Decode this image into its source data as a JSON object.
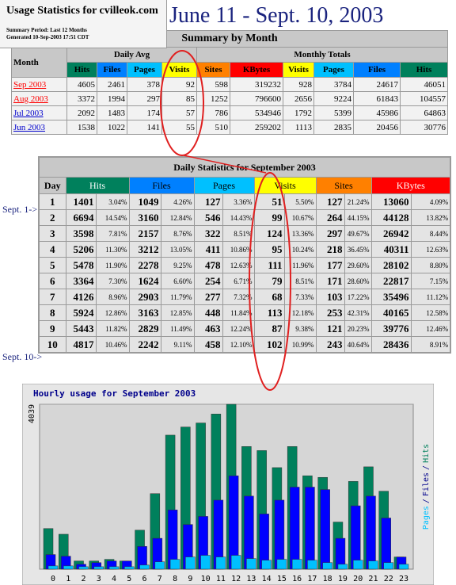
{
  "header": {
    "title": "Usage Statistics for cvilleok.com",
    "summary_period": "Summary Period: Last 12 Months",
    "generated": "Generated 10-Sep-2003 17:51 CDT"
  },
  "annotations": {
    "date_range": "June 11 - Sept. 10, 2003",
    "start_marker": "Sept. 1->",
    "end_marker": "Sept. 10->"
  },
  "summary_table": {
    "title": "Summary by Month",
    "month_header": "Month",
    "groups": [
      "Daily Avg",
      "Monthly Totals"
    ],
    "columns": [
      {
        "label": "Hits",
        "color": "#00805c"
      },
      {
        "label": "Files",
        "color": "#0080ff"
      },
      {
        "label": "Pages",
        "color": "#00c0ff"
      },
      {
        "label": "Visits",
        "color": "#ffff00"
      },
      {
        "label": "Sites",
        "color": "#ff8000"
      },
      {
        "label": "KBytes",
        "color": "#ff0000"
      },
      {
        "label": "Visits",
        "color": "#ffff00"
      },
      {
        "label": "Pages",
        "color": "#00c0ff"
      },
      {
        "label": "Files",
        "color": "#0080ff"
      },
      {
        "label": "Hits",
        "color": "#00805c"
      }
    ],
    "rows": [
      {
        "month": "Sep 2003",
        "link_color": "#ff0000",
        "cells": [
          "4605",
          "2461",
          "378",
          "92",
          "598",
          "319232",
          "928",
          "3784",
          "24617",
          "46051"
        ]
      },
      {
        "month": "Aug 2003",
        "link_color": "#ff0000",
        "cells": [
          "3372",
          "1994",
          "297",
          "85",
          "1252",
          "796600",
          "2656",
          "9224",
          "61843",
          "104557"
        ]
      },
      {
        "month": "Jul 2003",
        "link_color": "#0000cc",
        "cells": [
          "2092",
          "1483",
          "174",
          "57",
          "786",
          "534946",
          "1792",
          "5399",
          "45986",
          "64863"
        ]
      },
      {
        "month": "Jun 2003",
        "link_color": "#0000cc",
        "cells": [
          "1538",
          "1022",
          "141",
          "55",
          "510",
          "259202",
          "1113",
          "2835",
          "20456",
          "30776"
        ]
      }
    ]
  },
  "daily_table": {
    "title": "Daily Statistics for September 2003",
    "day_header": "Day",
    "columns": [
      {
        "label": "Hits",
        "color": "#00805c"
      },
      {
        "label": "Files",
        "color": "#0080ff"
      },
      {
        "label": "Pages",
        "color": "#00c0ff"
      },
      {
        "label": "Visits",
        "color": "#ffff00"
      },
      {
        "label": "Sites",
        "color": "#ff8000"
      },
      {
        "label": "KBytes",
        "color": "#ff0000"
      }
    ],
    "rows": [
      {
        "day": "1",
        "cells": [
          "1401",
          "3.04%",
          "1049",
          "4.26%",
          "127",
          "3.36%",
          "51",
          "5.50%",
          "127",
          "21.24%",
          "13060",
          "4.09%"
        ]
      },
      {
        "day": "2",
        "cells": [
          "6694",
          "14.54%",
          "3160",
          "12.84%",
          "546",
          "14.43%",
          "99",
          "10.67%",
          "264",
          "44.15%",
          "44128",
          "13.82%"
        ]
      },
      {
        "day": "3",
        "cells": [
          "3598",
          "7.81%",
          "2157",
          "8.76%",
          "322",
          "8.51%",
          "124",
          "13.36%",
          "297",
          "49.67%",
          "26942",
          "8.44%"
        ]
      },
      {
        "day": "4",
        "cells": [
          "5206",
          "11.30%",
          "3212",
          "13.05%",
          "411",
          "10.86%",
          "95",
          "10.24%",
          "218",
          "36.45%",
          "40311",
          "12.63%"
        ]
      },
      {
        "day": "5",
        "cells": [
          "5478",
          "11.90%",
          "2278",
          "9.25%",
          "478",
          "12.63%",
          "111",
          "11.96%",
          "177",
          "29.60%",
          "28102",
          "8.80%"
        ]
      },
      {
        "day": "6",
        "cells": [
          "3364",
          "7.30%",
          "1624",
          "6.60%",
          "254",
          "6.71%",
          "79",
          "8.51%",
          "171",
          "28.60%",
          "22817",
          "7.15%"
        ]
      },
      {
        "day": "7",
        "cells": [
          "4126",
          "8.96%",
          "2903",
          "11.79%",
          "277",
          "7.32%",
          "68",
          "7.33%",
          "103",
          "17.22%",
          "35496",
          "11.12%"
        ]
      },
      {
        "day": "8",
        "cells": [
          "5924",
          "12.86%",
          "3163",
          "12.85%",
          "448",
          "11.84%",
          "113",
          "12.18%",
          "253",
          "42.31%",
          "40165",
          "12.58%"
        ]
      },
      {
        "day": "9",
        "cells": [
          "5443",
          "11.82%",
          "2829",
          "11.49%",
          "463",
          "12.24%",
          "87",
          "9.38%",
          "121",
          "20.23%",
          "39776",
          "12.46%"
        ]
      },
      {
        "day": "10",
        "cells": [
          "4817",
          "10.46%",
          "2242",
          "9.11%",
          "458",
          "12.10%",
          "102",
          "10.99%",
          "243",
          "40.64%",
          "28436",
          "8.91%"
        ]
      }
    ]
  },
  "chart_data": {
    "type": "bar",
    "title": "Hourly usage for September 2003",
    "categories": [
      "0",
      "1",
      "2",
      "3",
      "4",
      "5",
      "6",
      "7",
      "8",
      "9",
      "10",
      "11",
      "12",
      "13",
      "14",
      "15",
      "16",
      "17",
      "18",
      "19",
      "20",
      "21",
      "22",
      "23"
    ],
    "series": [
      {
        "name": "Hits",
        "color": "#00805c",
        "values": [
          995,
          855,
          200,
          200,
          240,
          200,
          955,
          1850,
          3283,
          3482,
          3581,
          3800,
          4039,
          3004,
          2905,
          2487,
          3004,
          2288,
          2248,
          1154,
          2149,
          2507,
          1910,
          298
        ]
      },
      {
        "name": "Files",
        "color": "#0000ff",
        "values": [
          358,
          318,
          120,
          160,
          200,
          200,
          557,
          756,
          1452,
          1094,
          1293,
          1691,
          2288,
          1790,
          1353,
          1691,
          2010,
          2010,
          1950,
          756,
          1552,
          1790,
          1253,
          298
        ]
      },
      {
        "name": "Pages",
        "color": "#00c0ff",
        "values": [
          80,
          80,
          60,
          60,
          60,
          60,
          100,
          180,
          240,
          298,
          338,
          298,
          338,
          259,
          219,
          240,
          240,
          219,
          160,
          120,
          219,
          200,
          160,
          120
        ]
      }
    ],
    "ylim": [
      0,
      4039
    ],
    "yticks": [
      4039
    ],
    "y_label_separator": "/"
  }
}
